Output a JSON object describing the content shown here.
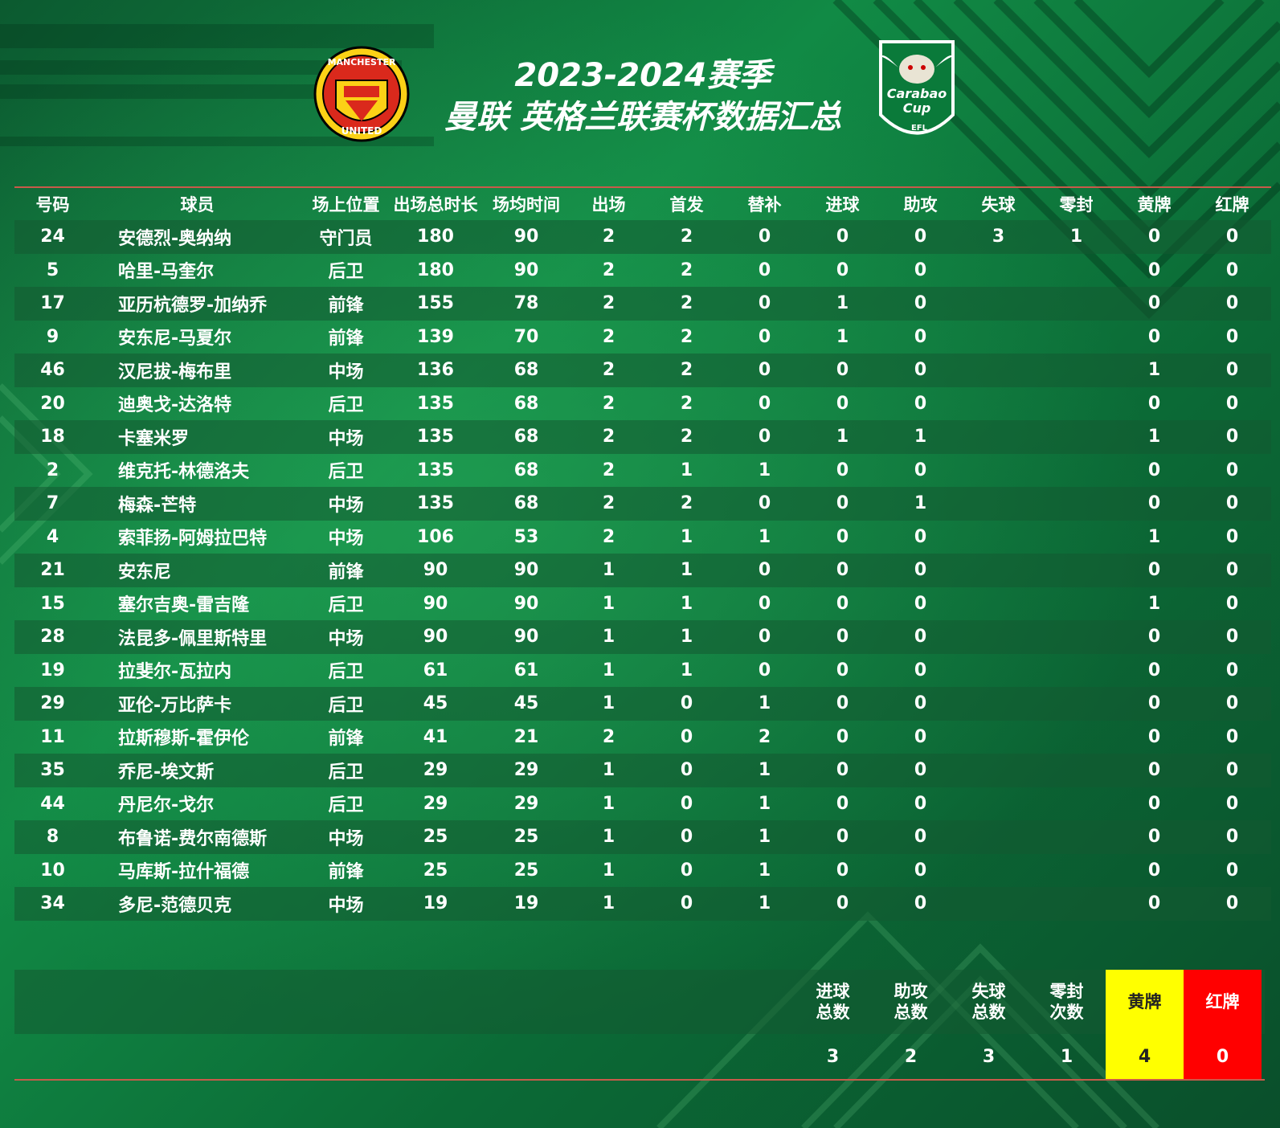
{
  "header": {
    "title_line1": "2023-2024赛季",
    "title_line2": "曼联 英格兰联赛杯数据汇总",
    "logo_left": "manchester-united-crest",
    "logo_right": "carabao-cup-logo",
    "logo_right_text1": "Carabao",
    "logo_right_text2": "Cup",
    "logo_right_text3": "EFL",
    "logo_left_text_top": "MANCHESTER",
    "logo_left_text_bottom": "UNITED"
  },
  "columns": [
    "号码",
    "球员",
    "场上位置",
    "出场总时长",
    "场均时间",
    "出场",
    "首发",
    "替补",
    "进球",
    "助攻",
    "失球",
    "零封",
    "黄牌",
    "红牌"
  ],
  "rows": [
    [
      "24",
      "安德烈-奥纳纳",
      "守门员",
      "180",
      "90",
      "2",
      "2",
      "0",
      "0",
      "0",
      "3",
      "1",
      "0",
      "0"
    ],
    [
      "5",
      "哈里-马奎尔",
      "后卫",
      "180",
      "90",
      "2",
      "2",
      "0",
      "0",
      "0",
      "",
      "",
      "0",
      "0"
    ],
    [
      "17",
      "亚历杭德罗-加纳乔",
      "前锋",
      "155",
      "78",
      "2",
      "2",
      "0",
      "1",
      "0",
      "",
      "",
      "0",
      "0"
    ],
    [
      "9",
      "安东尼-马夏尔",
      "前锋",
      "139",
      "70",
      "2",
      "2",
      "0",
      "1",
      "0",
      "",
      "",
      "0",
      "0"
    ],
    [
      "46",
      "汉尼拔-梅布里",
      "中场",
      "136",
      "68",
      "2",
      "2",
      "0",
      "0",
      "0",
      "",
      "",
      "1",
      "0"
    ],
    [
      "20",
      "迪奥戈-达洛特",
      "后卫",
      "135",
      "68",
      "2",
      "2",
      "0",
      "0",
      "0",
      "",
      "",
      "0",
      "0"
    ],
    [
      "18",
      "卡塞米罗",
      "中场",
      "135",
      "68",
      "2",
      "2",
      "0",
      "1",
      "1",
      "",
      "",
      "1",
      "0"
    ],
    [
      "2",
      "维克托-林德洛夫",
      "后卫",
      "135",
      "68",
      "2",
      "1",
      "1",
      "0",
      "0",
      "",
      "",
      "0",
      "0"
    ],
    [
      "7",
      "梅森-芒特",
      "中场",
      "135",
      "68",
      "2",
      "2",
      "0",
      "0",
      "1",
      "",
      "",
      "0",
      "0"
    ],
    [
      "4",
      "索菲扬-阿姆拉巴特",
      "中场",
      "106",
      "53",
      "2",
      "1",
      "1",
      "0",
      "0",
      "",
      "",
      "1",
      "0"
    ],
    [
      "21",
      "安东尼",
      "前锋",
      "90",
      "90",
      "1",
      "1",
      "0",
      "0",
      "0",
      "",
      "",
      "0",
      "0"
    ],
    [
      "15",
      "塞尔吉奥-雷吉隆",
      "后卫",
      "90",
      "90",
      "1",
      "1",
      "0",
      "0",
      "0",
      "",
      "",
      "1",
      "0"
    ],
    [
      "28",
      "法昆多-佩里斯特里",
      "中场",
      "90",
      "90",
      "1",
      "1",
      "0",
      "0",
      "0",
      "",
      "",
      "0",
      "0"
    ],
    [
      "19",
      "拉斐尔-瓦拉内",
      "后卫",
      "61",
      "61",
      "1",
      "1",
      "0",
      "0",
      "0",
      "",
      "",
      "0",
      "0"
    ],
    [
      "29",
      "亚伦-万比萨卡",
      "后卫",
      "45",
      "45",
      "1",
      "0",
      "1",
      "0",
      "0",
      "",
      "",
      "0",
      "0"
    ],
    [
      "11",
      "拉斯穆斯-霍伊伦",
      "前锋",
      "41",
      "21",
      "2",
      "0",
      "2",
      "0",
      "0",
      "",
      "",
      "0",
      "0"
    ],
    [
      "35",
      "乔尼-埃文斯",
      "后卫",
      "29",
      "29",
      "1",
      "0",
      "1",
      "0",
      "0",
      "",
      "",
      "0",
      "0"
    ],
    [
      "44",
      "丹尼尔-戈尔",
      "后卫",
      "29",
      "29",
      "1",
      "0",
      "1",
      "0",
      "0",
      "",
      "",
      "0",
      "0"
    ],
    [
      "8",
      "布鲁诺-费尔南德斯",
      "中场",
      "25",
      "25",
      "1",
      "0",
      "1",
      "0",
      "0",
      "",
      "",
      "0",
      "0"
    ],
    [
      "10",
      "马库斯-拉什福德",
      "前锋",
      "25",
      "25",
      "1",
      "0",
      "1",
      "0",
      "0",
      "",
      "",
      "0",
      "0"
    ],
    [
      "34",
      "多尼-范德贝克",
      "中场",
      "19",
      "19",
      "1",
      "0",
      "1",
      "0",
      "0",
      "",
      "",
      "0",
      "0"
    ]
  ],
  "summary": [
    {
      "label1": "进球",
      "label2": "总数",
      "value": "3",
      "style": "plain"
    },
    {
      "label1": "助攻",
      "label2": "总数",
      "value": "2",
      "style": "plain"
    },
    {
      "label1": "失球",
      "label2": "总数",
      "value": "3",
      "style": "plain"
    },
    {
      "label1": "零封",
      "label2": "次数",
      "value": "1",
      "style": "plain"
    },
    {
      "label1": "黄牌",
      "label2": "",
      "value": "4",
      "style": "yellow"
    },
    {
      "label1": "红牌",
      "label2": "",
      "value": "0",
      "style": "red"
    }
  ],
  "colors": {
    "yellow_card": "#ffff00",
    "red_card": "#ff0000",
    "rule_line": "#c85a4a",
    "background_green": "#118a45"
  }
}
